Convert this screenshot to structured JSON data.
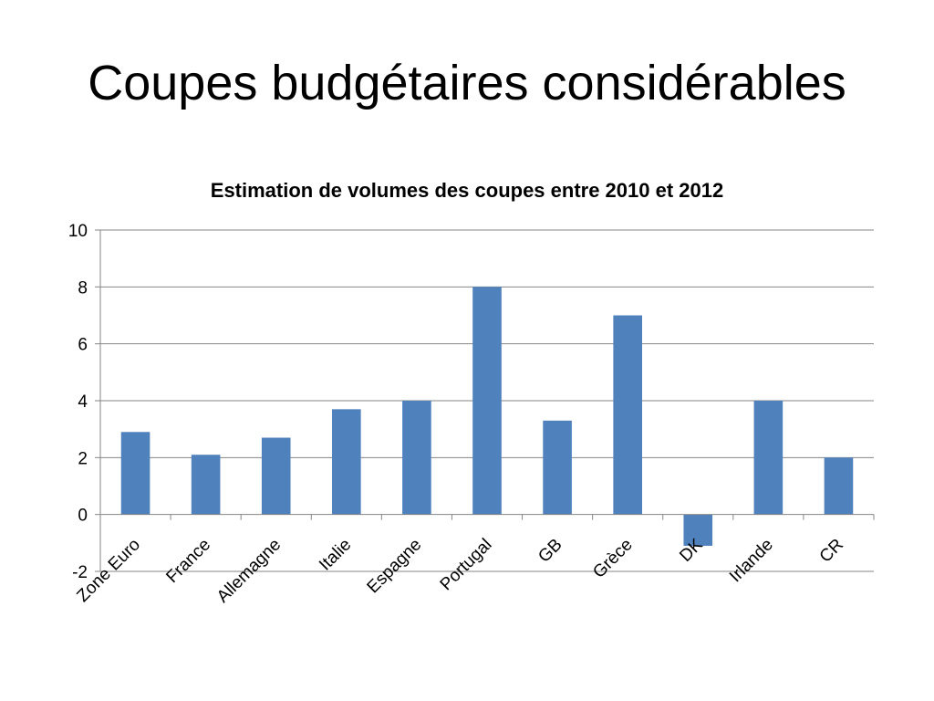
{
  "slide": {
    "title": "Coupes budgétaires considérables"
  },
  "chart_data": {
    "type": "bar",
    "title": "Estimation de volumes des coupes entre 2010 et 2012",
    "xlabel": "",
    "ylabel": "",
    "categories": [
      "Zone Euro",
      "France",
      "Allemagne",
      "Italie",
      "Espagne",
      "Portugal",
      "GB",
      "Grèce",
      "DK",
      "Irlande",
      "CR"
    ],
    "values": [
      2.9,
      2.1,
      2.7,
      3.7,
      4.0,
      8.0,
      3.3,
      7.0,
      -1.1,
      4.0,
      2.0
    ],
    "ylim": [
      -2,
      10
    ],
    "yticks": [
      10,
      8,
      6,
      4,
      2,
      0,
      -2
    ],
    "grid": true,
    "legend": "none",
    "bar_color": "#4F81BD",
    "gridline_color": "#868686"
  }
}
